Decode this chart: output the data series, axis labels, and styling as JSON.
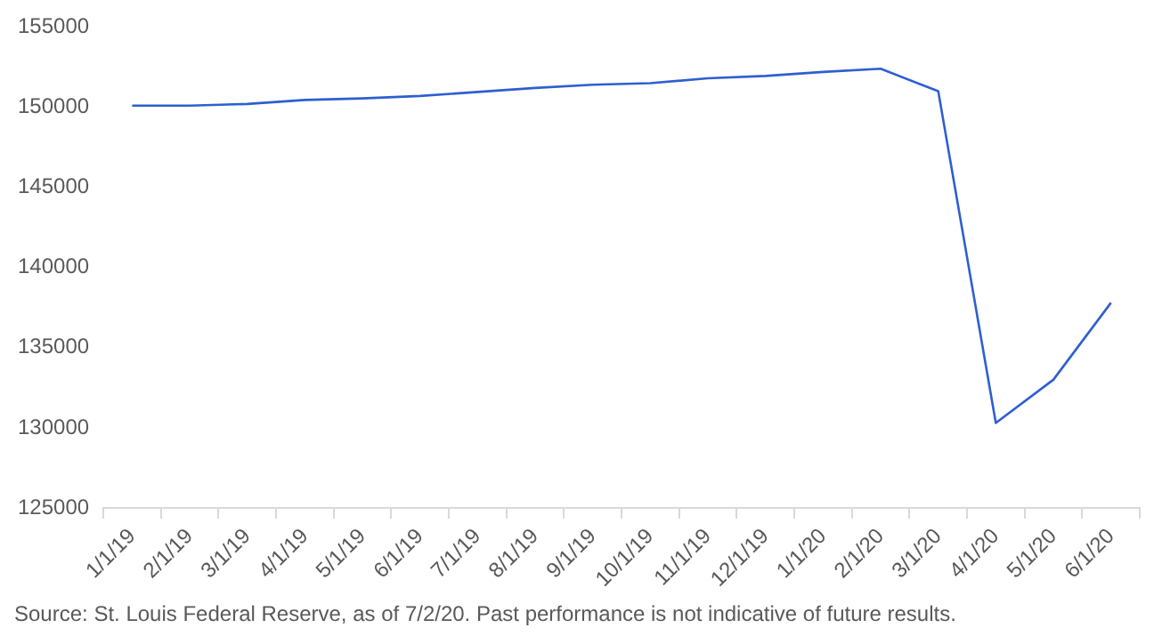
{
  "chart_data": {
    "type": "line",
    "categories": [
      "1/1/19",
      "2/1/19",
      "3/1/19",
      "4/1/19",
      "5/1/19",
      "6/1/19",
      "7/1/19",
      "8/1/19",
      "9/1/19",
      "10/1/19",
      "11/1/19",
      "12/1/19",
      "1/1/20",
      "2/1/20",
      "3/1/20",
      "4/1/20",
      "5/1/20",
      "6/1/20"
    ],
    "series": [
      {
        "color": "#2e5fd0",
        "values": [
          150100,
          150100,
          150200,
          150450,
          150550,
          150700,
          150950,
          151200,
          151400,
          151500,
          151800,
          151950,
          152200,
          152400,
          151000,
          130300,
          133000,
          137800
        ]
      }
    ],
    "ylim": [
      125000,
      155000
    ],
    "yticks": [
      125000,
      130000,
      135000,
      140000,
      145000,
      150000,
      155000
    ],
    "grid": false,
    "legend": false,
    "marker": "none",
    "line_style": "solid",
    "annotations": [
      "Source: St. Louis Federal Reserve, as of 7/2/20. Past performance is not indicative of future results."
    ]
  }
}
